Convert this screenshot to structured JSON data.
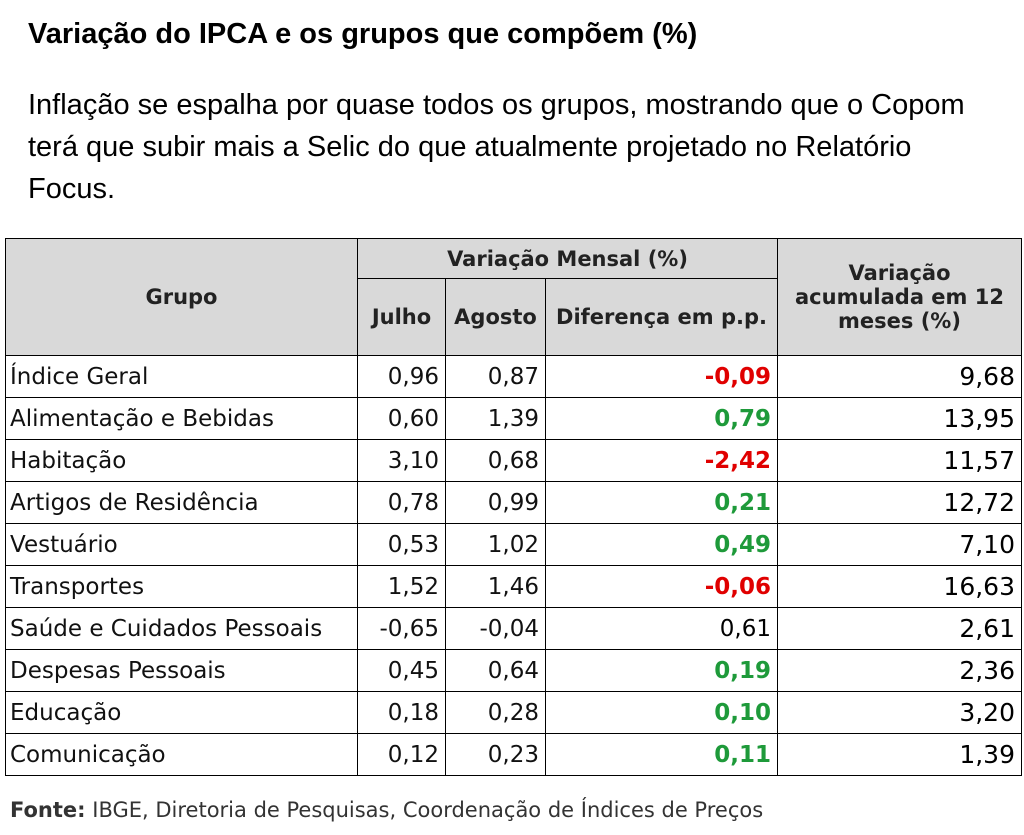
{
  "title": "Variação do IPCA e os grupos que compõem (%)",
  "subtitle": "Inflação se espalha por quase todos os grupos, mostrando que o Copom terá que subir mais a Selic do que atualmente projetado no Relatório Focus.",
  "table": {
    "col_group": "Grupo",
    "col_monthly": "Variação Mensal (%)",
    "col_july": "Julho",
    "col_august": "Agosto",
    "col_diff": "Diferença em p.p.",
    "col_accum": "Variação acumulada em 12 meses (%)",
    "rows": [
      {
        "group": "Índice Geral",
        "july": "0,96",
        "august": "0,87",
        "diff": "-0,09",
        "accum": "9,68"
      },
      {
        "group": "Alimentação e Bebidas",
        "july": "0,60",
        "august": "1,39",
        "diff": "0,79",
        "accum": "13,95"
      },
      {
        "group": "Habitação",
        "july": "3,10",
        "august": "0,68",
        "diff": "-2,42",
        "accum": "11,57"
      },
      {
        "group": "Artigos de Residência",
        "july": "0,78",
        "august": "0,99",
        "diff": "0,21",
        "accum": "12,72"
      },
      {
        "group": "Vestuário",
        "july": "0,53",
        "august": "1,02",
        "diff": "0,49",
        "accum": "7,10"
      },
      {
        "group": "Transportes",
        "july": "1,52",
        "august": "1,46",
        "diff": "-0,06",
        "accum": "16,63"
      },
      {
        "group": "Saúde e Cuidados Pessoais",
        "july": "-0,65",
        "august": "-0,04",
        "diff": "0,61",
        "accum": "2,61"
      },
      {
        "group": "Despesas Pessoais",
        "july": "0,45",
        "august": "0,64",
        "diff": "0,19",
        "accum": "2,36"
      },
      {
        "group": "Educação",
        "july": "0,18",
        "august": "0,28",
        "diff": "0,10",
        "accum": "3,20"
      },
      {
        "group": "Comunicação",
        "july": "0,12",
        "august": "0,23",
        "diff": "0,11",
        "accum": "1,39"
      }
    ]
  },
  "source": {
    "label": "Fonte:",
    "text": "IBGE, Diretoria de Pesquisas, Coordenação de Índices de Preços"
  },
  "colors": {
    "positive": "#1e9a3a",
    "negative": "#e00000",
    "header_bg": "#d9d9d9"
  }
}
